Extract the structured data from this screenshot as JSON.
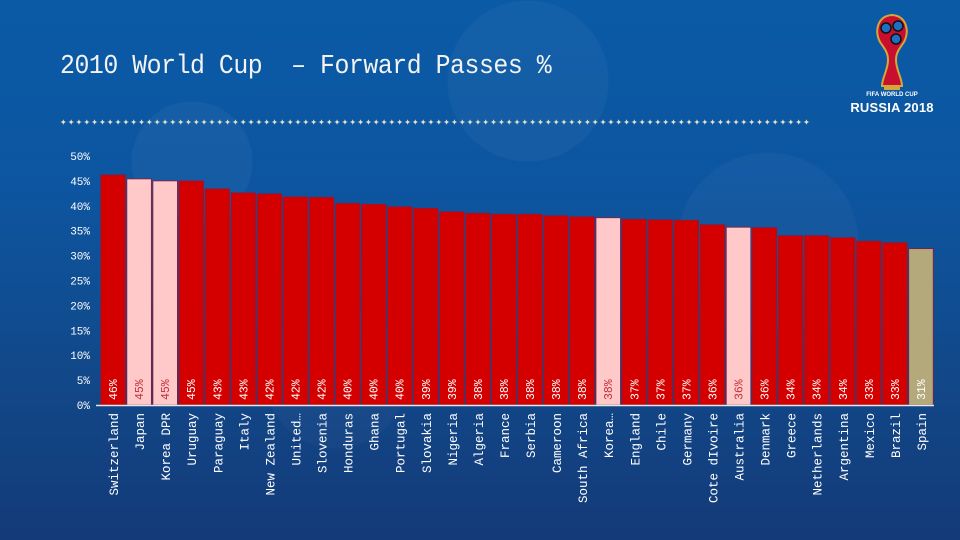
{
  "slide": {
    "title": "2010 World Cup  – Forward Passes %",
    "separator_glyphs": "✦✦✦✦✦✦✦✦✦✦✦✦✦✦✦✦✦✦✦✦✦✦✦✦✦✦✦✦✦✦✦✦✦✦✦✦✦✦✦✦✦✦✦✦✦✦✦✦✦✦✦✦✦✦✦✦✦✦✦✦✦✦✦✦✦✦✦✦✦✦✦✦✦✦✦✦✦✦✦✦✦✦✦✦✦✦✦✦✦✦✦✦✦✦✦✦"
  },
  "logo": {
    "icon": "world-cup-trophy-icon",
    "subtitle": "FIFA WORLD CUP",
    "main": "RUSSIA 2018"
  },
  "colors": {
    "bar_default": "#d40000",
    "bar_highlight": "#ffc9c9",
    "bar_spain": "#b3a97a",
    "bar_border": "#8a1a3a",
    "value_text_default": "#ffffff",
    "value_text_highlight": "#c0303a",
    "value_text_spain": "#ffffff"
  },
  "chart_data": {
    "type": "bar",
    "title": "2010 World Cup  – Forward Passes %",
    "xlabel": "",
    "ylabel": "",
    "ylim": [
      0,
      50
    ],
    "yticks": [
      "0%",
      "5%",
      "10%",
      "15%",
      "20%",
      "25%",
      "30%",
      "35%",
      "40%",
      "45%",
      "50%"
    ],
    "grid": false,
    "legend": "none",
    "categories": [
      "Switzerland",
      "Japan",
      "Korea DPR",
      "Uruguay",
      "Paraguay",
      "Italy",
      "New Zealand",
      "United…",
      "Slovenia",
      "Honduras",
      "Ghana",
      "Portugal",
      "Slovakia",
      "Nigeria",
      "Algeria",
      "France",
      "Serbia",
      "Cameroon",
      "South Africa",
      "Korea…",
      "England",
      "Chile",
      "Germany",
      "Cote dIvoire",
      "Australia",
      "Denmark",
      "Greece",
      "Netherlands",
      "Argentina",
      "Mexico",
      "Brazil",
      "Spain"
    ],
    "values": [
      46.2,
      45.4,
      45.0,
      45.0,
      43.4,
      42.6,
      42.4,
      41.8,
      41.7,
      40.5,
      40.3,
      39.8,
      39.5,
      38.8,
      38.5,
      38.3,
      38.3,
      38.0,
      37.8,
      37.6,
      37.3,
      37.2,
      37.1,
      36.2,
      35.7,
      35.6,
      34.0,
      34.0,
      33.6,
      32.9,
      32.6,
      31.4
    ],
    "data_labels": [
      "46%",
      "45%",
      "45%",
      "45%",
      "43%",
      "43%",
      "42%",
      "42%",
      "42%",
      "40%",
      "40%",
      "40%",
      "39%",
      "39%",
      "38%",
      "38%",
      "38%",
      "38%",
      "38%",
      "38%",
      "37%",
      "37%",
      "37%",
      "36%",
      "36%",
      "36%",
      "34%",
      "34%",
      "34%",
      "33%",
      "33%",
      "31%"
    ],
    "highlight": [
      "default",
      "highlight",
      "highlight",
      "default",
      "default",
      "default",
      "default",
      "default",
      "default",
      "default",
      "default",
      "default",
      "default",
      "default",
      "default",
      "default",
      "default",
      "default",
      "default",
      "highlight",
      "default",
      "default",
      "default",
      "default",
      "highlight",
      "default",
      "default",
      "default",
      "default",
      "default",
      "default",
      "spain"
    ]
  }
}
